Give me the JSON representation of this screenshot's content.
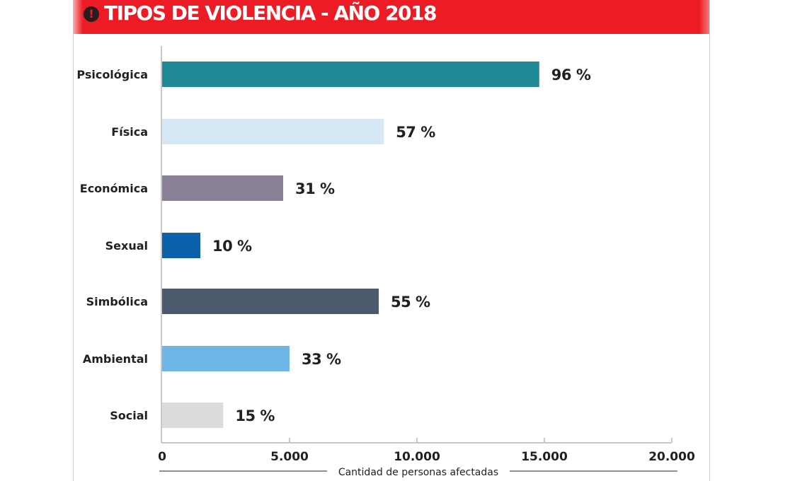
{
  "chart_data": {
    "type": "bar",
    "orientation": "horizontal",
    "title": "TIPOS DE VIOLENCIA - AÑO 2018",
    "title_icon": "exclamation-circle-icon",
    "categories": [
      "Psicológica",
      "Física",
      "Económica",
      "Sexual",
      "Simbólica",
      "Ambiental",
      "Social"
    ],
    "values": [
      14800,
      8700,
      4750,
      1500,
      8500,
      5000,
      2400
    ],
    "data_labels": [
      "96 %",
      "57 %",
      "31 %",
      "10 %",
      "55 %",
      "33 %",
      "15 %"
    ],
    "colors": [
      "#1f8a96",
      "#d4e8f6",
      "#8a8198",
      "#0b62aa",
      "#4b5b6d",
      "#6db6e5",
      "#dcdcdf"
    ],
    "xlabel": "Cantidad de personas afectadas",
    "xlim": [
      0,
      20000
    ],
    "xticks": [
      0,
      5000,
      10000,
      15000,
      20000
    ],
    "xtick_labels": [
      "0",
      "5.000",
      "10.000",
      "15.000",
      "20.000"
    ],
    "grid": false,
    "header_color": "#ed1c24"
  }
}
